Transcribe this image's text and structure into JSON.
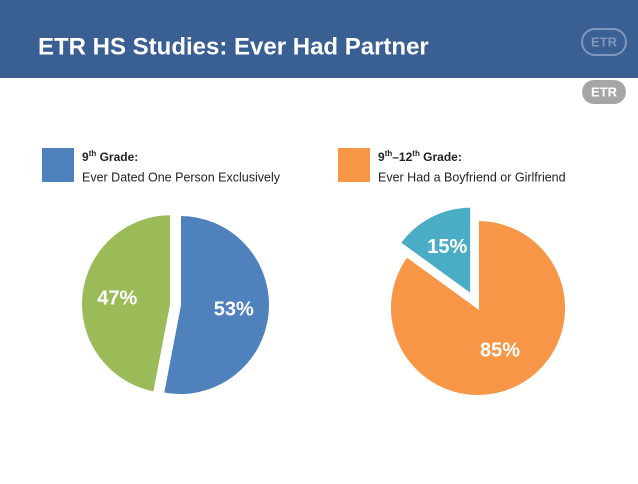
{
  "title": "ETR HS Studies: Ever Had Partner",
  "logo": "ETR",
  "chart_data": [
    {
      "type": "pie",
      "legend_heading_parts": [
        "9",
        "th",
        " Grade:"
      ],
      "legend_text": "Ever Dated One Person Exclusively",
      "values": [
        53,
        47
      ],
      "value_labels": [
        "53%",
        "47%"
      ],
      "colors": [
        "#4f81bd",
        "#9bbb59"
      ]
    },
    {
      "type": "pie",
      "legend_heading_parts": [
        "9",
        "th",
        "–12",
        "th",
        " Grade:"
      ],
      "legend_text": "Ever Had a Boyfriend or Girlfriend",
      "values": [
        85,
        15
      ],
      "value_labels": [
        "85%",
        "15%"
      ],
      "colors": [
        "#f79646",
        "#4bacc6"
      ]
    }
  ]
}
